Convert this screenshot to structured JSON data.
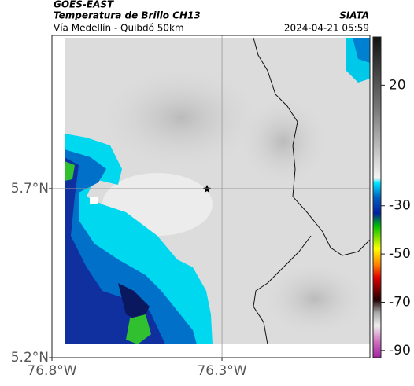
{
  "header": {
    "product": "GOES-EAST",
    "title": "Temperatura de Brillo CH13",
    "source": "SIATA",
    "subtitle": "Vía Medellín - Quibdó 50km",
    "timestamp": "2024-04-21 05:59"
  },
  "map": {
    "xlim": [
      -76.8,
      -75.865
    ],
    "ylim": [
      5.2,
      6.153
    ],
    "xticks": [
      {
        "value": -76.8,
        "label": "76.8°W"
      },
      {
        "value": -76.3,
        "label": "76.3°W"
      }
    ],
    "yticks": [
      {
        "value": 5.7,
        "label": "5.7°N"
      },
      {
        "value": 5.2,
        "label": "5.2°N"
      }
    ],
    "grid": true
  },
  "colorbar": {
    "lim": [
      -93,
      40
    ],
    "ticks": [
      20,
      -30,
      -50,
      -70,
      -90
    ]
  }
}
